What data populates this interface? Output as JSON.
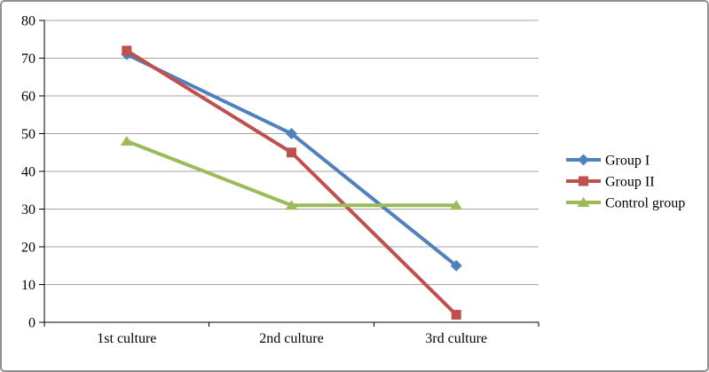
{
  "frame": {
    "background": "#FFFFFF",
    "border_color": "#8F8F8F"
  },
  "chart_data": {
    "type": "line",
    "title": "",
    "xlabel": "",
    "ylabel": "",
    "categories": [
      "1st culture",
      "2nd culture",
      "3rd culture"
    ],
    "series": [
      {
        "name": "Group I",
        "values": [
          71,
          50,
          15
        ],
        "color": "#4F81BD",
        "marker": "diamond"
      },
      {
        "name": "Group II",
        "values": [
          72,
          45,
          2
        ],
        "color": "#C0504D",
        "marker": "square"
      },
      {
        "name": "Control group",
        "values": [
          48,
          31,
          31
        ],
        "color": "#9BBB59",
        "marker": "triangle"
      }
    ],
    "ylim": [
      0,
      80
    ],
    "yticks": [
      0,
      10,
      20,
      30,
      40,
      50,
      60,
      70,
      80
    ],
    "grid": true,
    "legend": {
      "position": "right",
      "entries": [
        "Group I",
        "Group II",
        "Control group"
      ]
    },
    "colors": {
      "gridline": "#A6A6A6",
      "axis": "#000000",
      "text": "#000000"
    }
  }
}
